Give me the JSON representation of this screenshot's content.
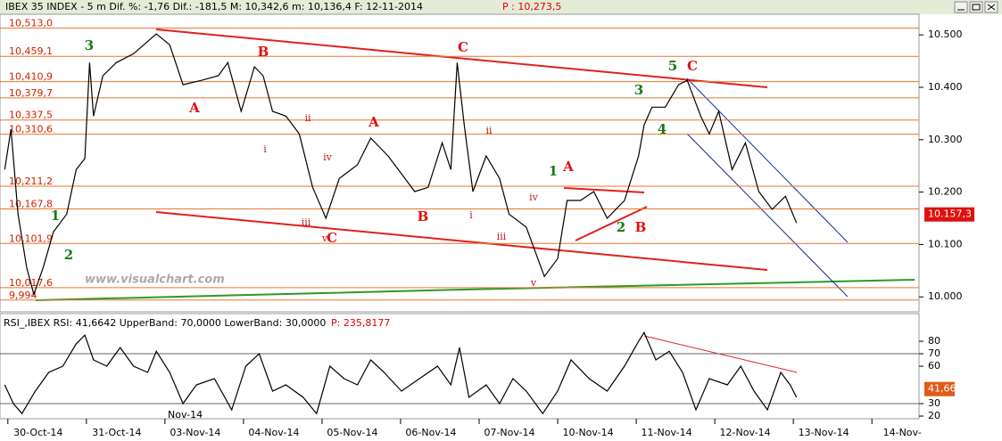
{
  "chart_data": [
    {
      "type": "line",
      "title": "IBEX 35 INDEX  -  5 m Dif. %: -1,76 Dif.: -181,5 M: 10,342,6 m: 10,136,4 F: 12-11-2014",
      "subtitle": "P : 10,273,5",
      "watermark": "www.visualchart.com",
      "period_label": "Nov-14",
      "color": "#000000",
      "x": [
        -0.04,
        0.04,
        0.13,
        0.24,
        0.33,
        0.45,
        0.58,
        0.75,
        0.87,
        0.98,
        1.04,
        1.09,
        1.21,
        1.38,
        1.6,
        1.89,
        2.06,
        2.23,
        2.46,
        2.68,
        2.8,
        2.97,
        3.14,
        3.25,
        3.37,
        3.54,
        3.71,
        3.88,
        4.05,
        4.22,
        4.45,
        4.62,
        4.84,
        5.01,
        5.18,
        5.35,
        5.53,
        5.64,
        5.72,
        5.81,
        5.92,
        6.09,
        6.26,
        6.38,
        6.6,
        6.83,
        7.0,
        7.12,
        7.29,
        7.46,
        7.63,
        7.85,
        8.03,
        8.1,
        8.2,
        8.37,
        8.54,
        8.65,
        8.82,
        8.93,
        9.05,
        9.22,
        9.39,
        9.56,
        9.73,
        9.9,
        10.04
      ],
      "values": [
        10243,
        10320,
        10158,
        10056,
        10005,
        10056,
        10124,
        10158,
        10243,
        10264,
        10447,
        10345,
        10422,
        10447,
        10464,
        10502,
        10481,
        10405,
        10413,
        10422,
        10447,
        10354,
        10439,
        10422,
        10354,
        10345,
        10311,
        10209,
        10150,
        10226,
        10252,
        10303,
        10269,
        10235,
        10201,
        10209,
        10294,
        10243,
        10447,
        10328,
        10201,
        10269,
        10226,
        10158,
        10133,
        10039,
        10073,
        10184,
        10184,
        10201,
        10150,
        10184,
        10269,
        10328,
        10362,
        10362,
        10405,
        10413,
        10345,
        10311,
        10354,
        10243,
        10294,
        10201,
        10167,
        10192,
        10141
      ],
      "xlim": [
        -0.1,
        11.6
      ],
      "xticks": [
        {
          "value": 0,
          "label": "30-Oct-14"
        },
        {
          "value": 1,
          "label": "31-Oct-14"
        },
        {
          "value": 2,
          "label": "03-Nov-14"
        },
        {
          "value": 3,
          "label": "04-Nov-14"
        },
        {
          "value": 4,
          "label": "05-Nov-14"
        },
        {
          "value": 5,
          "label": "06-Nov-14"
        },
        {
          "value": 6,
          "label": "07-Nov-14"
        },
        {
          "value": 7,
          "label": "10-Nov-14"
        },
        {
          "value": 8,
          "label": "11-Nov-14"
        },
        {
          "value": 9,
          "label": "12-Nov-14"
        },
        {
          "value": 10,
          "label": "13-Nov-14"
        },
        {
          "value": 11,
          "label": "14-Nov-"
        }
      ],
      "ylim": [
        9980,
        10536
      ],
      "yticks": [
        {
          "value": 10000,
          "label": "10.000"
        },
        {
          "value": 10100,
          "label": "10.100"
        },
        {
          "value": 10200,
          "label": "10.200"
        },
        {
          "value": 10300,
          "label": "10.300"
        },
        {
          "value": 10400,
          "label": "10.400"
        },
        {
          "value": 10500,
          "label": "10.500"
        }
      ],
      "levels": [
        {
          "value": 10513,
          "label": "10,513,0"
        },
        {
          "value": 10459.1,
          "label": "10,459,1"
        },
        {
          "value": 10410.9,
          "label": "10,410,9"
        },
        {
          "value": 10379.7,
          "label": "10,379,7"
        },
        {
          "value": 10337.5,
          "label": "10,337,5"
        },
        {
          "value": 10310.6,
          "label": "10,310,6"
        },
        {
          "value": 10211.2,
          "label": "10,211,2"
        },
        {
          "value": 10167.8,
          "label": "10,167,8"
        },
        {
          "value": 10101.9,
          "label": "10,101,9"
        },
        {
          "value": 10017.6,
          "label": "10,017,6"
        },
        {
          "value": 9994,
          "label": "9,994"
        }
      ],
      "level_color": "#e8772e",
      "last_value": {
        "value": 10157.3,
        "label": "10.157,3"
      },
      "annotations": [
        "3",
        "1",
        "2",
        "A",
        "B",
        "C",
        "i",
        "ii",
        "iii",
        "iv",
        "v",
        "C",
        "A",
        "B",
        "i",
        "ii",
        "iii",
        "iv",
        "v",
        "1",
        "A",
        "2",
        "B",
        "3",
        "4",
        "5",
        "C"
      ]
    },
    {
      "type": "line",
      "title": "RSI_,IBEX RSI: 41,6642 UpperBand: 70,0000 LowerBand: 30,0000",
      "subtitle": "P: 235,8177",
      "color": "#000000",
      "x": [
        -0.04,
        0.07,
        0.18,
        0.35,
        0.52,
        0.7,
        0.87,
        0.98,
        1.09,
        1.26,
        1.43,
        1.6,
        1.78,
        1.89,
        2.06,
        2.23,
        2.4,
        2.63,
        2.85,
        3.03,
        3.2,
        3.37,
        3.54,
        3.76,
        3.93,
        4.1,
        4.28,
        4.45,
        4.62,
        4.79,
        5.01,
        5.24,
        5.47,
        5.64,
        5.75,
        5.87,
        6.09,
        6.26,
        6.43,
        6.6,
        6.81,
        7.0,
        7.17,
        7.4,
        7.63,
        7.85,
        8.03,
        8.1,
        8.25,
        8.42,
        8.59,
        8.76,
        8.93,
        9.16,
        9.33,
        9.5,
        9.67,
        9.84,
        9.96,
        10.04
      ],
      "values": [
        45,
        30,
        22,
        40,
        55,
        60,
        78,
        85,
        65,
        60,
        75,
        60,
        55,
        72,
        55,
        30,
        45,
        50,
        25,
        60,
        70,
        40,
        45,
        35,
        22,
        60,
        50,
        45,
        65,
        55,
        40,
        50,
        60,
        45,
        75,
        35,
        45,
        30,
        50,
        40,
        22,
        40,
        65,
        50,
        40,
        60,
        80,
        87,
        65,
        72,
        55,
        25,
        50,
        45,
        60,
        40,
        25,
        55,
        45,
        35
      ],
      "xlim": [
        -0.1,
        11.6
      ],
      "ylim": [
        19.3,
        87.9
      ],
      "yticks": [
        20,
        30,
        60,
        70,
        80
      ],
      "bands": [
        70,
        30
      ],
      "last_value": {
        "value": 41.66,
        "label": "41,66"
      }
    }
  ]
}
